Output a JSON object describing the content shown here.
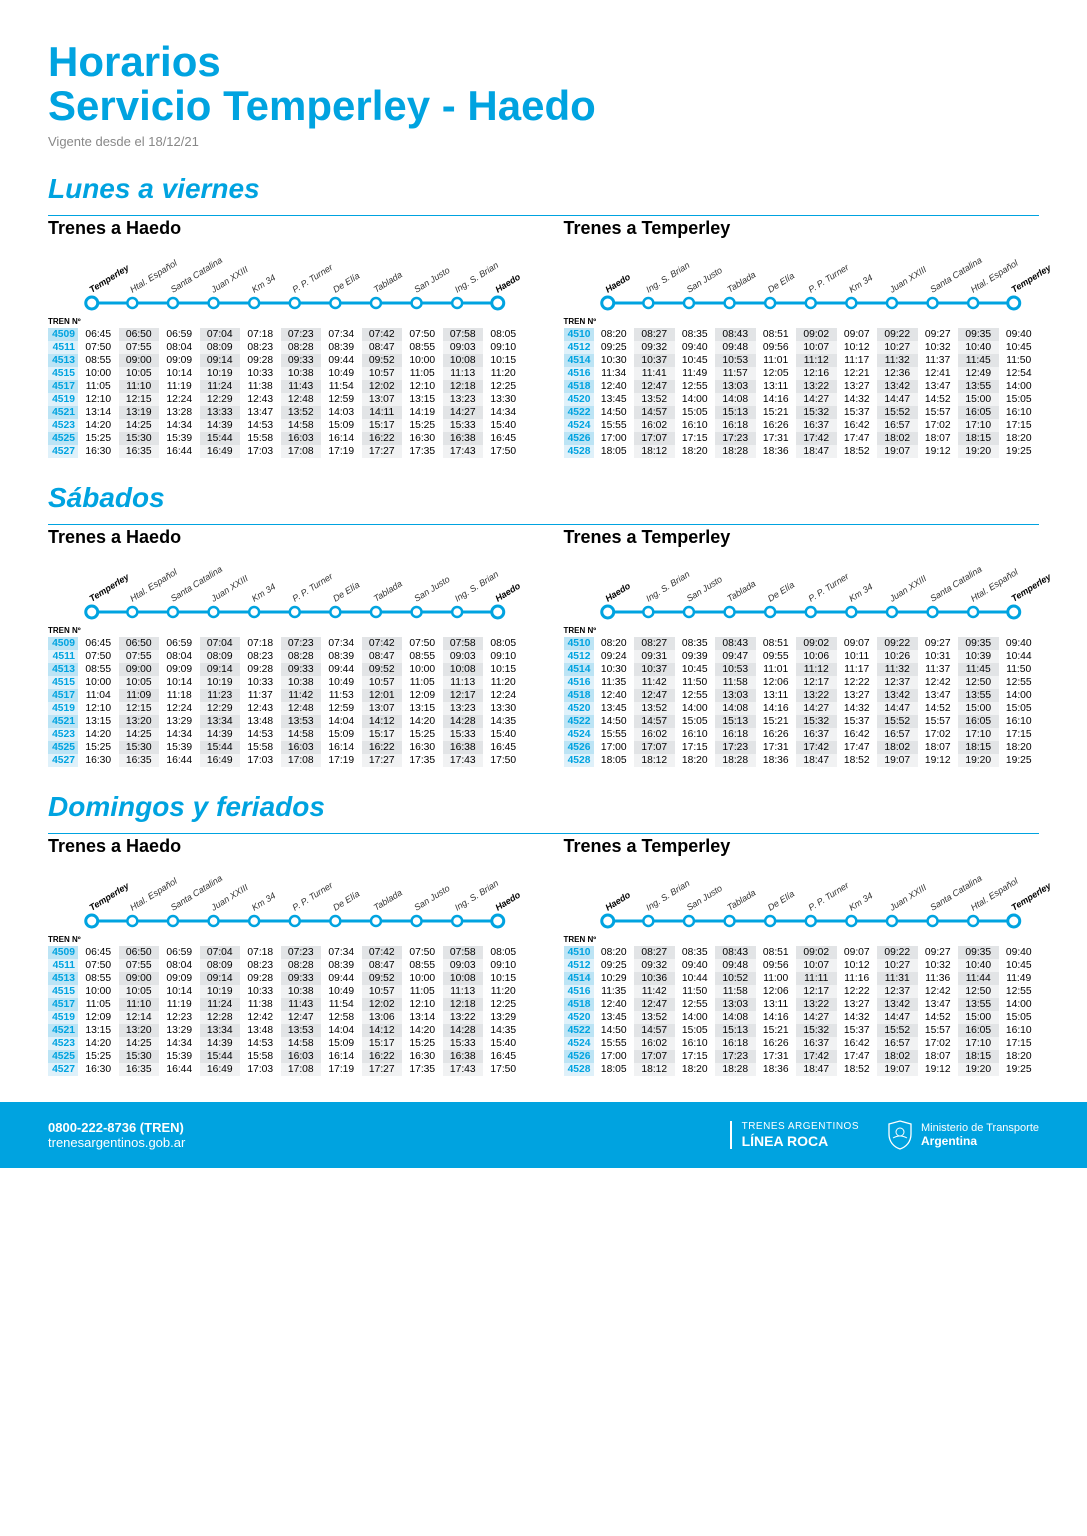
{
  "header": {
    "title_line1": "Horarios",
    "title_line2": "Servicio Temperley - Haedo",
    "effective": "Vigente desde el 18/12/21"
  },
  "colors": {
    "accent": "#00a3e0",
    "shade_a": "#e2e4e6",
    "shade_b": "#f1f2f3",
    "train_bg_a": "#bce4f5",
    "train_bg_b": "#dff1fa"
  },
  "stations_to_haedo": [
    "Temperley",
    "Htal. Español",
    "Santa Catalina",
    "Juan XXIII",
    "Km 34",
    "P. P. Turner",
    "De Elía",
    "Tablada",
    "San Justo",
    "Ing. S. Brian",
    "Haedo"
  ],
  "stations_to_temperley": [
    "Haedo",
    "Ing. S. Brian",
    "San Justo",
    "Tablada",
    "De Elía",
    "P. P. Turner",
    "Km 34",
    "Juan XXIII",
    "Santa Catalina",
    "Htal. Español",
    "Temperley"
  ],
  "tren_label": "TREN Nº",
  "sections": [
    {
      "title": "Lunes a viernes",
      "left": {
        "direction": "Trenes a Haedo",
        "stations_key": "stations_to_haedo",
        "rows": [
          [
            "4509",
            "06:45",
            "06:50",
            "06:59",
            "07:04",
            "07:18",
            "07:23",
            "07:34",
            "07:42",
            "07:50",
            "07:58",
            "08:05"
          ],
          [
            "4511",
            "07:50",
            "07:55",
            "08:04",
            "08:09",
            "08:23",
            "08:28",
            "08:39",
            "08:47",
            "08:55",
            "09:03",
            "09:10"
          ],
          [
            "4513",
            "08:55",
            "09:00",
            "09:09",
            "09:14",
            "09:28",
            "09:33",
            "09:44",
            "09:52",
            "10:00",
            "10:08",
            "10:15"
          ],
          [
            "4515",
            "10:00",
            "10:05",
            "10:14",
            "10:19",
            "10:33",
            "10:38",
            "10:49",
            "10:57",
            "11:05",
            "11:13",
            "11:20"
          ],
          [
            "4517",
            "11:05",
            "11:10",
            "11:19",
            "11:24",
            "11:38",
            "11:43",
            "11:54",
            "12:02",
            "12:10",
            "12:18",
            "12:25"
          ],
          [
            "4519",
            "12:10",
            "12:15",
            "12:24",
            "12:29",
            "12:43",
            "12:48",
            "12:59",
            "13:07",
            "13:15",
            "13:23",
            "13:30"
          ],
          [
            "4521",
            "13:14",
            "13:19",
            "13:28",
            "13:33",
            "13:47",
            "13:52",
            "14:03",
            "14:11",
            "14:19",
            "14:27",
            "14:34"
          ],
          [
            "4523",
            "14:20",
            "14:25",
            "14:34",
            "14:39",
            "14:53",
            "14:58",
            "15:09",
            "15:17",
            "15:25",
            "15:33",
            "15:40"
          ],
          [
            "4525",
            "15:25",
            "15:30",
            "15:39",
            "15:44",
            "15:58",
            "16:03",
            "16:14",
            "16:22",
            "16:30",
            "16:38",
            "16:45"
          ],
          [
            "4527",
            "16:30",
            "16:35",
            "16:44",
            "16:49",
            "17:03",
            "17:08",
            "17:19",
            "17:27",
            "17:35",
            "17:43",
            "17:50"
          ]
        ]
      },
      "right": {
        "direction": "Trenes a Temperley",
        "stations_key": "stations_to_temperley",
        "rows": [
          [
            "4510",
            "08:20",
            "08:27",
            "08:35",
            "08:43",
            "08:51",
            "09:02",
            "09:07",
            "09:22",
            "09:27",
            "09:35",
            "09:40"
          ],
          [
            "4512",
            "09:25",
            "09:32",
            "09:40",
            "09:48",
            "09:56",
            "10:07",
            "10:12",
            "10:27",
            "10:32",
            "10:40",
            "10:45"
          ],
          [
            "4514",
            "10:30",
            "10:37",
            "10:45",
            "10:53",
            "11:01",
            "11:12",
            "11:17",
            "11:32",
            "11:37",
            "11:45",
            "11:50"
          ],
          [
            "4516",
            "11:34",
            "11:41",
            "11:49",
            "11:57",
            "12:05",
            "12:16",
            "12:21",
            "12:36",
            "12:41",
            "12:49",
            "12:54"
          ],
          [
            "4518",
            "12:40",
            "12:47",
            "12:55",
            "13:03",
            "13:11",
            "13:22",
            "13:27",
            "13:42",
            "13:47",
            "13:55",
            "14:00"
          ],
          [
            "4520",
            "13:45",
            "13:52",
            "14:00",
            "14:08",
            "14:16",
            "14:27",
            "14:32",
            "14:47",
            "14:52",
            "15:00",
            "15:05"
          ],
          [
            "4522",
            "14:50",
            "14:57",
            "15:05",
            "15:13",
            "15:21",
            "15:32",
            "15:37",
            "15:52",
            "15:57",
            "16:05",
            "16:10"
          ],
          [
            "4524",
            "15:55",
            "16:02",
            "16:10",
            "16:18",
            "16:26",
            "16:37",
            "16:42",
            "16:57",
            "17:02",
            "17:10",
            "17:15"
          ],
          [
            "4526",
            "17:00",
            "17:07",
            "17:15",
            "17:23",
            "17:31",
            "17:42",
            "17:47",
            "18:02",
            "18:07",
            "18:15",
            "18:20"
          ],
          [
            "4528",
            "18:05",
            "18:12",
            "18:20",
            "18:28",
            "18:36",
            "18:47",
            "18:52",
            "19:07",
            "19:12",
            "19:20",
            "19:25"
          ]
        ]
      }
    },
    {
      "title": "Sábados",
      "left": {
        "direction": "Trenes a Haedo",
        "stations_key": "stations_to_haedo",
        "rows": [
          [
            "4509",
            "06:45",
            "06:50",
            "06:59",
            "07:04",
            "07:18",
            "07:23",
            "07:34",
            "07:42",
            "07:50",
            "07:58",
            "08:05"
          ],
          [
            "4511",
            "07:50",
            "07:55",
            "08:04",
            "08:09",
            "08:23",
            "08:28",
            "08:39",
            "08:47",
            "08:55",
            "09:03",
            "09:10"
          ],
          [
            "4513",
            "08:55",
            "09:00",
            "09:09",
            "09:14",
            "09:28",
            "09:33",
            "09:44",
            "09:52",
            "10:00",
            "10:08",
            "10:15"
          ],
          [
            "4515",
            "10:00",
            "10:05",
            "10:14",
            "10:19",
            "10:33",
            "10:38",
            "10:49",
            "10:57",
            "11:05",
            "11:13",
            "11:20"
          ],
          [
            "4517",
            "11:04",
            "11:09",
            "11:18",
            "11:23",
            "11:37",
            "11:42",
            "11:53",
            "12:01",
            "12:09",
            "12:17",
            "12:24"
          ],
          [
            "4519",
            "12:10",
            "12:15",
            "12:24",
            "12:29",
            "12:43",
            "12:48",
            "12:59",
            "13:07",
            "13:15",
            "13:23",
            "13:30"
          ],
          [
            "4521",
            "13:15",
            "13:20",
            "13:29",
            "13:34",
            "13:48",
            "13:53",
            "14:04",
            "14:12",
            "14:20",
            "14:28",
            "14:35"
          ],
          [
            "4523",
            "14:20",
            "14:25",
            "14:34",
            "14:39",
            "14:53",
            "14:58",
            "15:09",
            "15:17",
            "15:25",
            "15:33",
            "15:40"
          ],
          [
            "4525",
            "15:25",
            "15:30",
            "15:39",
            "15:44",
            "15:58",
            "16:03",
            "16:14",
            "16:22",
            "16:30",
            "16:38",
            "16:45"
          ],
          [
            "4527",
            "16:30",
            "16:35",
            "16:44",
            "16:49",
            "17:03",
            "17:08",
            "17:19",
            "17:27",
            "17:35",
            "17:43",
            "17:50"
          ]
        ]
      },
      "right": {
        "direction": "Trenes a Temperley",
        "stations_key": "stations_to_temperley",
        "rows": [
          [
            "4510",
            "08:20",
            "08:27",
            "08:35",
            "08:43",
            "08:51",
            "09:02",
            "09:07",
            "09:22",
            "09:27",
            "09:35",
            "09:40"
          ],
          [
            "4512",
            "09:24",
            "09:31",
            "09:39",
            "09:47",
            "09:55",
            "10:06",
            "10:11",
            "10:26",
            "10:31",
            "10:39",
            "10:44"
          ],
          [
            "4514",
            "10:30",
            "10:37",
            "10:45",
            "10:53",
            "11:01",
            "11:12",
            "11:17",
            "11:32",
            "11:37",
            "11:45",
            "11:50"
          ],
          [
            "4516",
            "11:35",
            "11:42",
            "11:50",
            "11:58",
            "12:06",
            "12:17",
            "12:22",
            "12:37",
            "12:42",
            "12:50",
            "12:55"
          ],
          [
            "4518",
            "12:40",
            "12:47",
            "12:55",
            "13:03",
            "13:11",
            "13:22",
            "13:27",
            "13:42",
            "13:47",
            "13:55",
            "14:00"
          ],
          [
            "4520",
            "13:45",
            "13:52",
            "14:00",
            "14:08",
            "14:16",
            "14:27",
            "14:32",
            "14:47",
            "14:52",
            "15:00",
            "15:05"
          ],
          [
            "4522",
            "14:50",
            "14:57",
            "15:05",
            "15:13",
            "15:21",
            "15:32",
            "15:37",
            "15:52",
            "15:57",
            "16:05",
            "16:10"
          ],
          [
            "4524",
            "15:55",
            "16:02",
            "16:10",
            "16:18",
            "16:26",
            "16:37",
            "16:42",
            "16:57",
            "17:02",
            "17:10",
            "17:15"
          ],
          [
            "4526",
            "17:00",
            "17:07",
            "17:15",
            "17:23",
            "17:31",
            "17:42",
            "17:47",
            "18:02",
            "18:07",
            "18:15",
            "18:20"
          ],
          [
            "4528",
            "18:05",
            "18:12",
            "18:20",
            "18:28",
            "18:36",
            "18:47",
            "18:52",
            "19:07",
            "19:12",
            "19:20",
            "19:25"
          ]
        ]
      }
    },
    {
      "title": "Domingos y feriados",
      "left": {
        "direction": "Trenes a Haedo",
        "stations_key": "stations_to_haedo",
        "rows": [
          [
            "4509",
            "06:45",
            "06:50",
            "06:59",
            "07:04",
            "07:18",
            "07:23",
            "07:34",
            "07:42",
            "07:50",
            "07:58",
            "08:05"
          ],
          [
            "4511",
            "07:50",
            "07:55",
            "08:04",
            "08:09",
            "08:23",
            "08:28",
            "08:39",
            "08:47",
            "08:55",
            "09:03",
            "09:10"
          ],
          [
            "4513",
            "08:55",
            "09:00",
            "09:09",
            "09:14",
            "09:28",
            "09:33",
            "09:44",
            "09:52",
            "10:00",
            "10:08",
            "10:15"
          ],
          [
            "4515",
            "10:00",
            "10:05",
            "10:14",
            "10:19",
            "10:33",
            "10:38",
            "10:49",
            "10:57",
            "11:05",
            "11:13",
            "11:20"
          ],
          [
            "4517",
            "11:05",
            "11:10",
            "11:19",
            "11:24",
            "11:38",
            "11:43",
            "11:54",
            "12:02",
            "12:10",
            "12:18",
            "12:25"
          ],
          [
            "4519",
            "12:09",
            "12:14",
            "12:23",
            "12:28",
            "12:42",
            "12:47",
            "12:58",
            "13:06",
            "13:14",
            "13:22",
            "13:29"
          ],
          [
            "4521",
            "13:15",
            "13:20",
            "13:29",
            "13:34",
            "13:48",
            "13:53",
            "14:04",
            "14:12",
            "14:20",
            "14:28",
            "14:35"
          ],
          [
            "4523",
            "14:20",
            "14:25",
            "14:34",
            "14:39",
            "14:53",
            "14:58",
            "15:09",
            "15:17",
            "15:25",
            "15:33",
            "15:40"
          ],
          [
            "4525",
            "15:25",
            "15:30",
            "15:39",
            "15:44",
            "15:58",
            "16:03",
            "16:14",
            "16:22",
            "16:30",
            "16:38",
            "16:45"
          ],
          [
            "4527",
            "16:30",
            "16:35",
            "16:44",
            "16:49",
            "17:03",
            "17:08",
            "17:19",
            "17:27",
            "17:35",
            "17:43",
            "17:50"
          ]
        ]
      },
      "right": {
        "direction": "Trenes a Temperley",
        "stations_key": "stations_to_temperley",
        "rows": [
          [
            "4510",
            "08:20",
            "08:27",
            "08:35",
            "08:43",
            "08:51",
            "09:02",
            "09:07",
            "09:22",
            "09:27",
            "09:35",
            "09:40"
          ],
          [
            "4512",
            "09:25",
            "09:32",
            "09:40",
            "09:48",
            "09:56",
            "10:07",
            "10:12",
            "10:27",
            "10:32",
            "10:40",
            "10:45"
          ],
          [
            "4514",
            "10:29",
            "10:36",
            "10:44",
            "10:52",
            "11:00",
            "11:11",
            "11:16",
            "11:31",
            "11:36",
            "11:44",
            "11:49"
          ],
          [
            "4516",
            "11:35",
            "11:42",
            "11:50",
            "11:58",
            "12:06",
            "12:17",
            "12:22",
            "12:37",
            "12:42",
            "12:50",
            "12:55"
          ],
          [
            "4518",
            "12:40",
            "12:47",
            "12:55",
            "13:03",
            "13:11",
            "13:22",
            "13:27",
            "13:42",
            "13:47",
            "13:55",
            "14:00"
          ],
          [
            "4520",
            "13:45",
            "13:52",
            "14:00",
            "14:08",
            "14:16",
            "14:27",
            "14:32",
            "14:47",
            "14:52",
            "15:00",
            "15:05"
          ],
          [
            "4522",
            "14:50",
            "14:57",
            "15:05",
            "15:13",
            "15:21",
            "15:32",
            "15:37",
            "15:52",
            "15:57",
            "16:05",
            "16:10"
          ],
          [
            "4524",
            "15:55",
            "16:02",
            "16:10",
            "16:18",
            "16:26",
            "16:37",
            "16:42",
            "16:57",
            "17:02",
            "17:10",
            "17:15"
          ],
          [
            "4526",
            "17:00",
            "17:07",
            "17:15",
            "17:23",
            "17:31",
            "17:42",
            "17:47",
            "18:02",
            "18:07",
            "18:15",
            "18:20"
          ],
          [
            "4528",
            "18:05",
            "18:12",
            "18:20",
            "18:28",
            "18:36",
            "18:47",
            "18:52",
            "19:07",
            "19:12",
            "19:20",
            "19:25"
          ]
        ]
      }
    }
  ],
  "footer": {
    "phone": "0800-222-8736 (TREN)",
    "url": "trenesargentinos.gob.ar",
    "brand_small": "TRENES ARGENTINOS",
    "brand_big": "LÍNEA ROCA",
    "ministry_line1": "Ministerio de Transporte",
    "ministry_line2": "Argentina"
  }
}
